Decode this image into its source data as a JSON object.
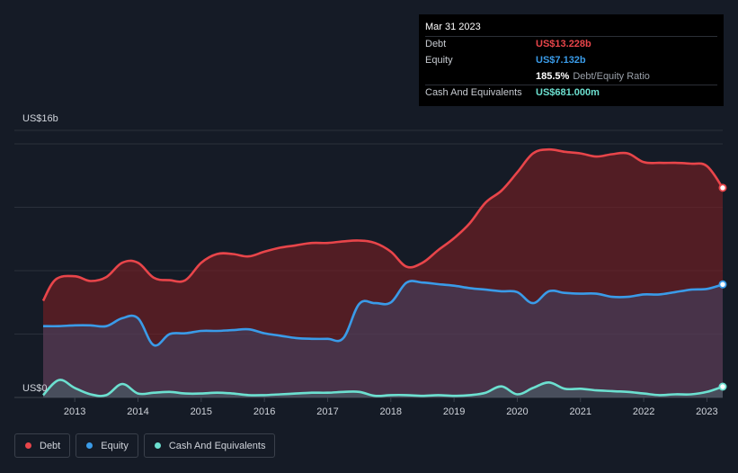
{
  "tooltip": {
    "date": "Mar 31 2023",
    "rows": [
      {
        "label": "Debt",
        "value": "US$13.228b",
        "color": "#e8454a"
      },
      {
        "label": "Equity",
        "value": "US$7.132b",
        "color": "#3a9be8"
      },
      {
        "ratio_value": "185.5%",
        "ratio_label": "Debt/Equity Ratio"
      },
      {
        "label": "Cash And Equivalents",
        "value": "US$681.000m",
        "color": "#6ce0d0"
      }
    ]
  },
  "legend": [
    {
      "label": "Debt",
      "color": "#e8454a"
    },
    {
      "label": "Equity",
      "color": "#3a9be8"
    },
    {
      "label": "Cash And Equivalents",
      "color": "#6ce0d0"
    }
  ],
  "chart_data": {
    "type": "area",
    "y_max_label": "US$16b",
    "y_min_label": "US$0",
    "ylim": [
      0,
      16
    ],
    "xlim": [
      2012.5,
      2023.25
    ],
    "x_ticks": [
      "2013",
      "2014",
      "2015",
      "2016",
      "2017",
      "2018",
      "2019",
      "2020",
      "2021",
      "2022",
      "2023"
    ],
    "grid": true,
    "legend_position": "bottom-left",
    "series": [
      {
        "name": "Debt",
        "color": "#e8454a",
        "points": [
          [
            2012.5,
            6.1
          ],
          [
            2012.7,
            7.45
          ],
          [
            2013.0,
            7.65
          ],
          [
            2013.25,
            7.35
          ],
          [
            2013.5,
            7.6
          ],
          [
            2013.75,
            8.5
          ],
          [
            2014.0,
            8.5
          ],
          [
            2014.25,
            7.55
          ],
          [
            2014.5,
            7.4
          ],
          [
            2014.75,
            7.4
          ],
          [
            2015.0,
            8.5
          ],
          [
            2015.25,
            9.05
          ],
          [
            2015.5,
            9.05
          ],
          [
            2015.75,
            8.9
          ],
          [
            2016.0,
            9.2
          ],
          [
            2016.25,
            9.45
          ],
          [
            2016.5,
            9.6
          ],
          [
            2016.75,
            9.75
          ],
          [
            2017.0,
            9.75
          ],
          [
            2017.25,
            9.85
          ],
          [
            2017.5,
            9.9
          ],
          [
            2017.75,
            9.75
          ],
          [
            2018.0,
            9.2
          ],
          [
            2018.25,
            8.25
          ],
          [
            2018.5,
            8.5
          ],
          [
            2018.75,
            9.3
          ],
          [
            2019.0,
            10.05
          ],
          [
            2019.25,
            11.0
          ],
          [
            2019.5,
            12.3
          ],
          [
            2019.75,
            13.05
          ],
          [
            2020.0,
            14.2
          ],
          [
            2020.25,
            15.4
          ],
          [
            2020.5,
            15.65
          ],
          [
            2020.75,
            15.5
          ],
          [
            2021.0,
            15.4
          ],
          [
            2021.25,
            15.2
          ],
          [
            2021.5,
            15.35
          ],
          [
            2021.75,
            15.4
          ],
          [
            2022.0,
            14.85
          ],
          [
            2022.25,
            14.8
          ],
          [
            2022.5,
            14.8
          ],
          [
            2022.75,
            14.75
          ],
          [
            2023.0,
            14.6
          ],
          [
            2023.25,
            13.228
          ]
        ]
      },
      {
        "name": "Equity",
        "color": "#3a9be8",
        "points": [
          [
            2012.5,
            4.5
          ],
          [
            2012.75,
            4.5
          ],
          [
            2013.0,
            4.55
          ],
          [
            2013.25,
            4.55
          ],
          [
            2013.5,
            4.5
          ],
          [
            2013.75,
            5.0
          ],
          [
            2014.0,
            5.0
          ],
          [
            2014.25,
            3.3
          ],
          [
            2014.5,
            4.0
          ],
          [
            2014.75,
            4.05
          ],
          [
            2015.0,
            4.2
          ],
          [
            2015.25,
            4.2
          ],
          [
            2015.5,
            4.25
          ],
          [
            2015.75,
            4.3
          ],
          [
            2016.0,
            4.05
          ],
          [
            2016.25,
            3.9
          ],
          [
            2016.5,
            3.75
          ],
          [
            2016.75,
            3.7
          ],
          [
            2017.0,
            3.7
          ],
          [
            2017.25,
            3.75
          ],
          [
            2017.5,
            5.9
          ],
          [
            2017.75,
            5.95
          ],
          [
            2018.0,
            6.0
          ],
          [
            2018.25,
            7.25
          ],
          [
            2018.5,
            7.25
          ],
          [
            2018.75,
            7.15
          ],
          [
            2019.0,
            7.05
          ],
          [
            2019.25,
            6.9
          ],
          [
            2019.5,
            6.8
          ],
          [
            2019.75,
            6.7
          ],
          [
            2020.0,
            6.65
          ],
          [
            2020.25,
            5.95
          ],
          [
            2020.5,
            6.7
          ],
          [
            2020.75,
            6.6
          ],
          [
            2021.0,
            6.55
          ],
          [
            2021.25,
            6.55
          ],
          [
            2021.5,
            6.35
          ],
          [
            2021.75,
            6.35
          ],
          [
            2022.0,
            6.5
          ],
          [
            2022.25,
            6.5
          ],
          [
            2022.5,
            6.65
          ],
          [
            2022.75,
            6.8
          ],
          [
            2023.0,
            6.85
          ],
          [
            2023.25,
            7.132
          ]
        ]
      },
      {
        "name": "Cash And Equivalents",
        "color": "#6ce0d0",
        "points": [
          [
            2012.5,
            0.15
          ],
          [
            2012.75,
            1.1
          ],
          [
            2013.0,
            0.6
          ],
          [
            2013.25,
            0.2
          ],
          [
            2013.5,
            0.15
          ],
          [
            2013.75,
            0.85
          ],
          [
            2014.0,
            0.25
          ],
          [
            2014.25,
            0.3
          ],
          [
            2014.5,
            0.35
          ],
          [
            2014.75,
            0.25
          ],
          [
            2015.0,
            0.25
          ],
          [
            2015.25,
            0.3
          ],
          [
            2015.5,
            0.25
          ],
          [
            2015.75,
            0.15
          ],
          [
            2016.0,
            0.15
          ],
          [
            2016.25,
            0.2
          ],
          [
            2016.5,
            0.25
          ],
          [
            2016.75,
            0.3
          ],
          [
            2017.0,
            0.3
          ],
          [
            2017.25,
            0.35
          ],
          [
            2017.5,
            0.35
          ],
          [
            2017.75,
            0.1
          ],
          [
            2018.0,
            0.15
          ],
          [
            2018.25,
            0.15
          ],
          [
            2018.5,
            0.1
          ],
          [
            2018.75,
            0.15
          ],
          [
            2019.0,
            0.1
          ],
          [
            2019.25,
            0.15
          ],
          [
            2019.5,
            0.3
          ],
          [
            2019.75,
            0.7
          ],
          [
            2020.0,
            0.2
          ],
          [
            2020.25,
            0.6
          ],
          [
            2020.5,
            0.95
          ],
          [
            2020.75,
            0.55
          ],
          [
            2021.0,
            0.55
          ],
          [
            2021.25,
            0.45
          ],
          [
            2021.5,
            0.4
          ],
          [
            2021.75,
            0.35
          ],
          [
            2022.0,
            0.25
          ],
          [
            2022.25,
            0.15
          ],
          [
            2022.5,
            0.2
          ],
          [
            2022.75,
            0.2
          ],
          [
            2023.0,
            0.35
          ],
          [
            2023.25,
            0.681
          ]
        ]
      }
    ]
  }
}
